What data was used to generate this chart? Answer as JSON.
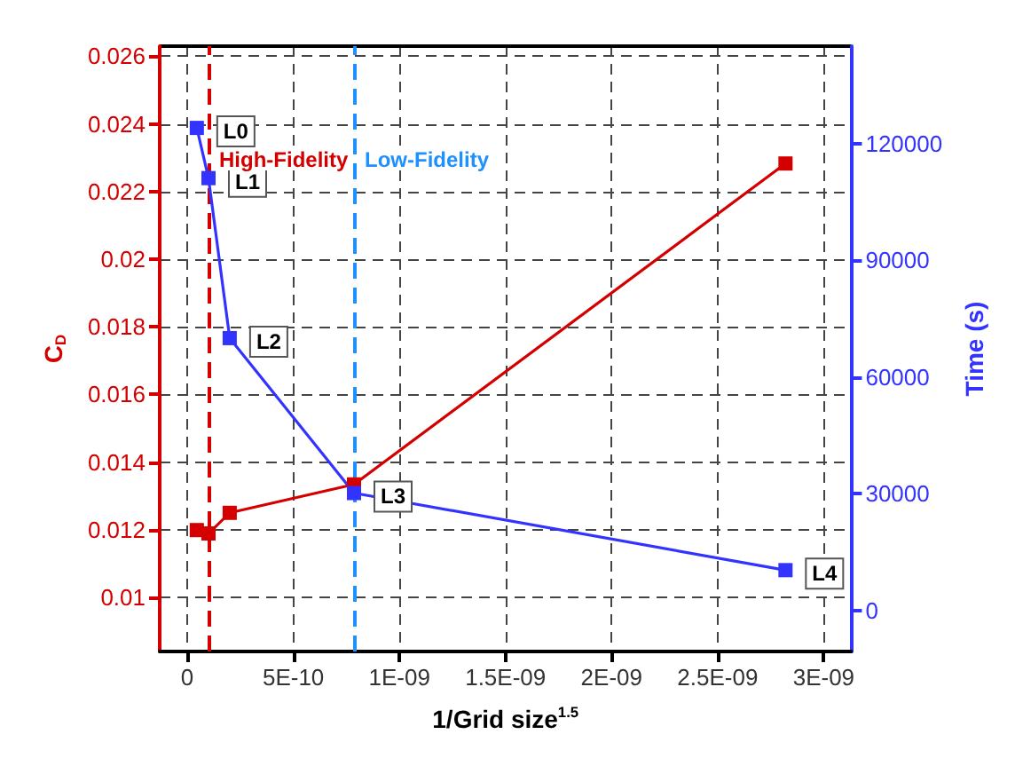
{
  "chart_data": {
    "type": "line",
    "xlabel": "1/Grid size$^{1.5}$",
    "ylabel": "C$_{D}$",
    "y2label": "Time (s)",
    "xlim": [
      -1.3e-10,
      3.13e-09
    ],
    "xticks": [
      0,
      {
        "value": 5e-10,
        "label": "5E-10"
      },
      {
        "value": 1e-09,
        "label": "1E-09"
      },
      {
        "value": 1.5e-09,
        "label": "1.5E-09"
      },
      {
        "value": 2e-09,
        "label": "2E-09"
      },
      {
        "value": 2.5e-09,
        "label": "2.5E-09"
      },
      {
        "value": 3e-09,
        "label": "3E-09"
      }
    ],
    "ylim": [
      0.0084,
      0.0263
    ],
    "yticks": [
      0.01,
      0.012,
      0.014,
      0.016,
      0.018,
      0.02,
      0.022,
      0.024,
      0.026
    ],
    "y2lim": [
      -10500,
      145000
    ],
    "y2ticks": [
      0,
      30000,
      60000,
      90000,
      120000
    ],
    "x": [
      4.5e-11,
      1e-10,
      2e-10,
      7.86e-10,
      2.82e-09
    ],
    "series": [
      {
        "color": "#d40000",
        "values": [
          0.01199,
          0.01189,
          0.0125,
          0.01334,
          0.02283
        ]
      },
      {
        "color": "#3333ff",
        "axis": "y2",
        "values": [
          124000,
          111100,
          70000,
          30200,
          10400
        ],
        "value_labels": [
          "L0",
          "L1",
          "L2",
          "L3",
          "L4"
        ]
      }
    ],
    "ref_lines": [
      {
        "axis": "x",
        "value": 1e-10,
        "label": "High-Fidelity",
        "color": "#d40000",
        "line_style": "dashed"
      },
      {
        "axis": "x",
        "value": 7.86e-10,
        "label": "Low-Fidelity",
        "color": "#1e90ff",
        "line_style": "dashed"
      }
    ],
    "grid": true,
    "marker": "square",
    "line_style": "solid"
  }
}
